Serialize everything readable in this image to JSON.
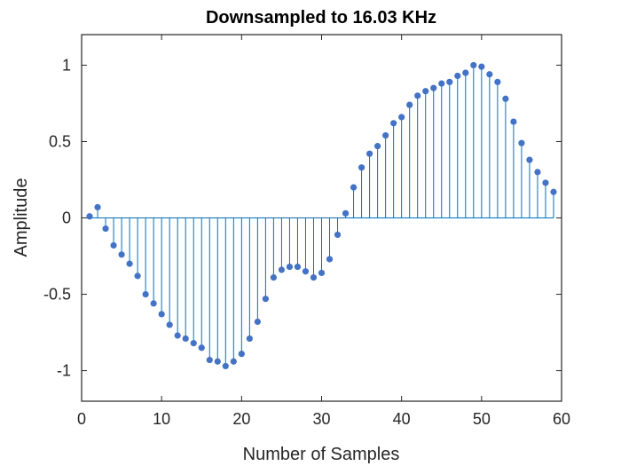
{
  "chart_data": {
    "type": "stem",
    "title": "Downsampled to 16.03 KHz",
    "xlabel": "Number of Samples",
    "ylabel": "Amplitude",
    "xlim": [
      0,
      60
    ],
    "ylim": [
      -1.2,
      1.2
    ],
    "xticks": [
      0,
      10,
      20,
      30,
      40,
      50,
      60
    ],
    "yticks": [
      -1,
      -0.5,
      0,
      0.5,
      1
    ],
    "xtick_labels": [
      "0",
      "10",
      "20",
      "30",
      "40",
      "50",
      "60"
    ],
    "ytick_labels": [
      "-1",
      "-0.5",
      "0",
      "0.5",
      "1"
    ],
    "grid": false,
    "box": true,
    "stem_color": "#0072BD",
    "marker_color": "#4472C4",
    "x": [
      1,
      2,
      3,
      4,
      5,
      6,
      7,
      8,
      9,
      10,
      11,
      12,
      13,
      14,
      15,
      16,
      17,
      18,
      19,
      20,
      21,
      22,
      23,
      24,
      25,
      26,
      27,
      28,
      29,
      30,
      31,
      32,
      33,
      34,
      35,
      36,
      37,
      38,
      39,
      40,
      41,
      42,
      43,
      44,
      45,
      46,
      47,
      48,
      49,
      50,
      51,
      52,
      53,
      54,
      55,
      56,
      57,
      58,
      59
    ],
    "y": [
      0.01,
      0.07,
      -0.07,
      -0.18,
      -0.24,
      -0.3,
      -0.38,
      -0.5,
      -0.56,
      -0.63,
      -0.7,
      -0.77,
      -0.79,
      -0.82,
      -0.85,
      -0.93,
      -0.94,
      -0.97,
      -0.94,
      -0.89,
      -0.79,
      -0.68,
      -0.53,
      -0.39,
      -0.34,
      -0.32,
      -0.32,
      -0.35,
      -0.39,
      -0.36,
      -0.27,
      -0.11,
      0.03,
      0.2,
      0.33,
      0.42,
      0.47,
      0.54,
      0.62,
      0.66,
      0.74,
      0.8,
      0.83,
      0.85,
      0.88,
      0.89,
      0.93,
      0.95,
      1.0,
      0.99,
      0.94,
      0.89,
      0.78,
      0.63,
      0.49,
      0.38,
      0.3,
      0.23,
      0.17
    ]
  }
}
